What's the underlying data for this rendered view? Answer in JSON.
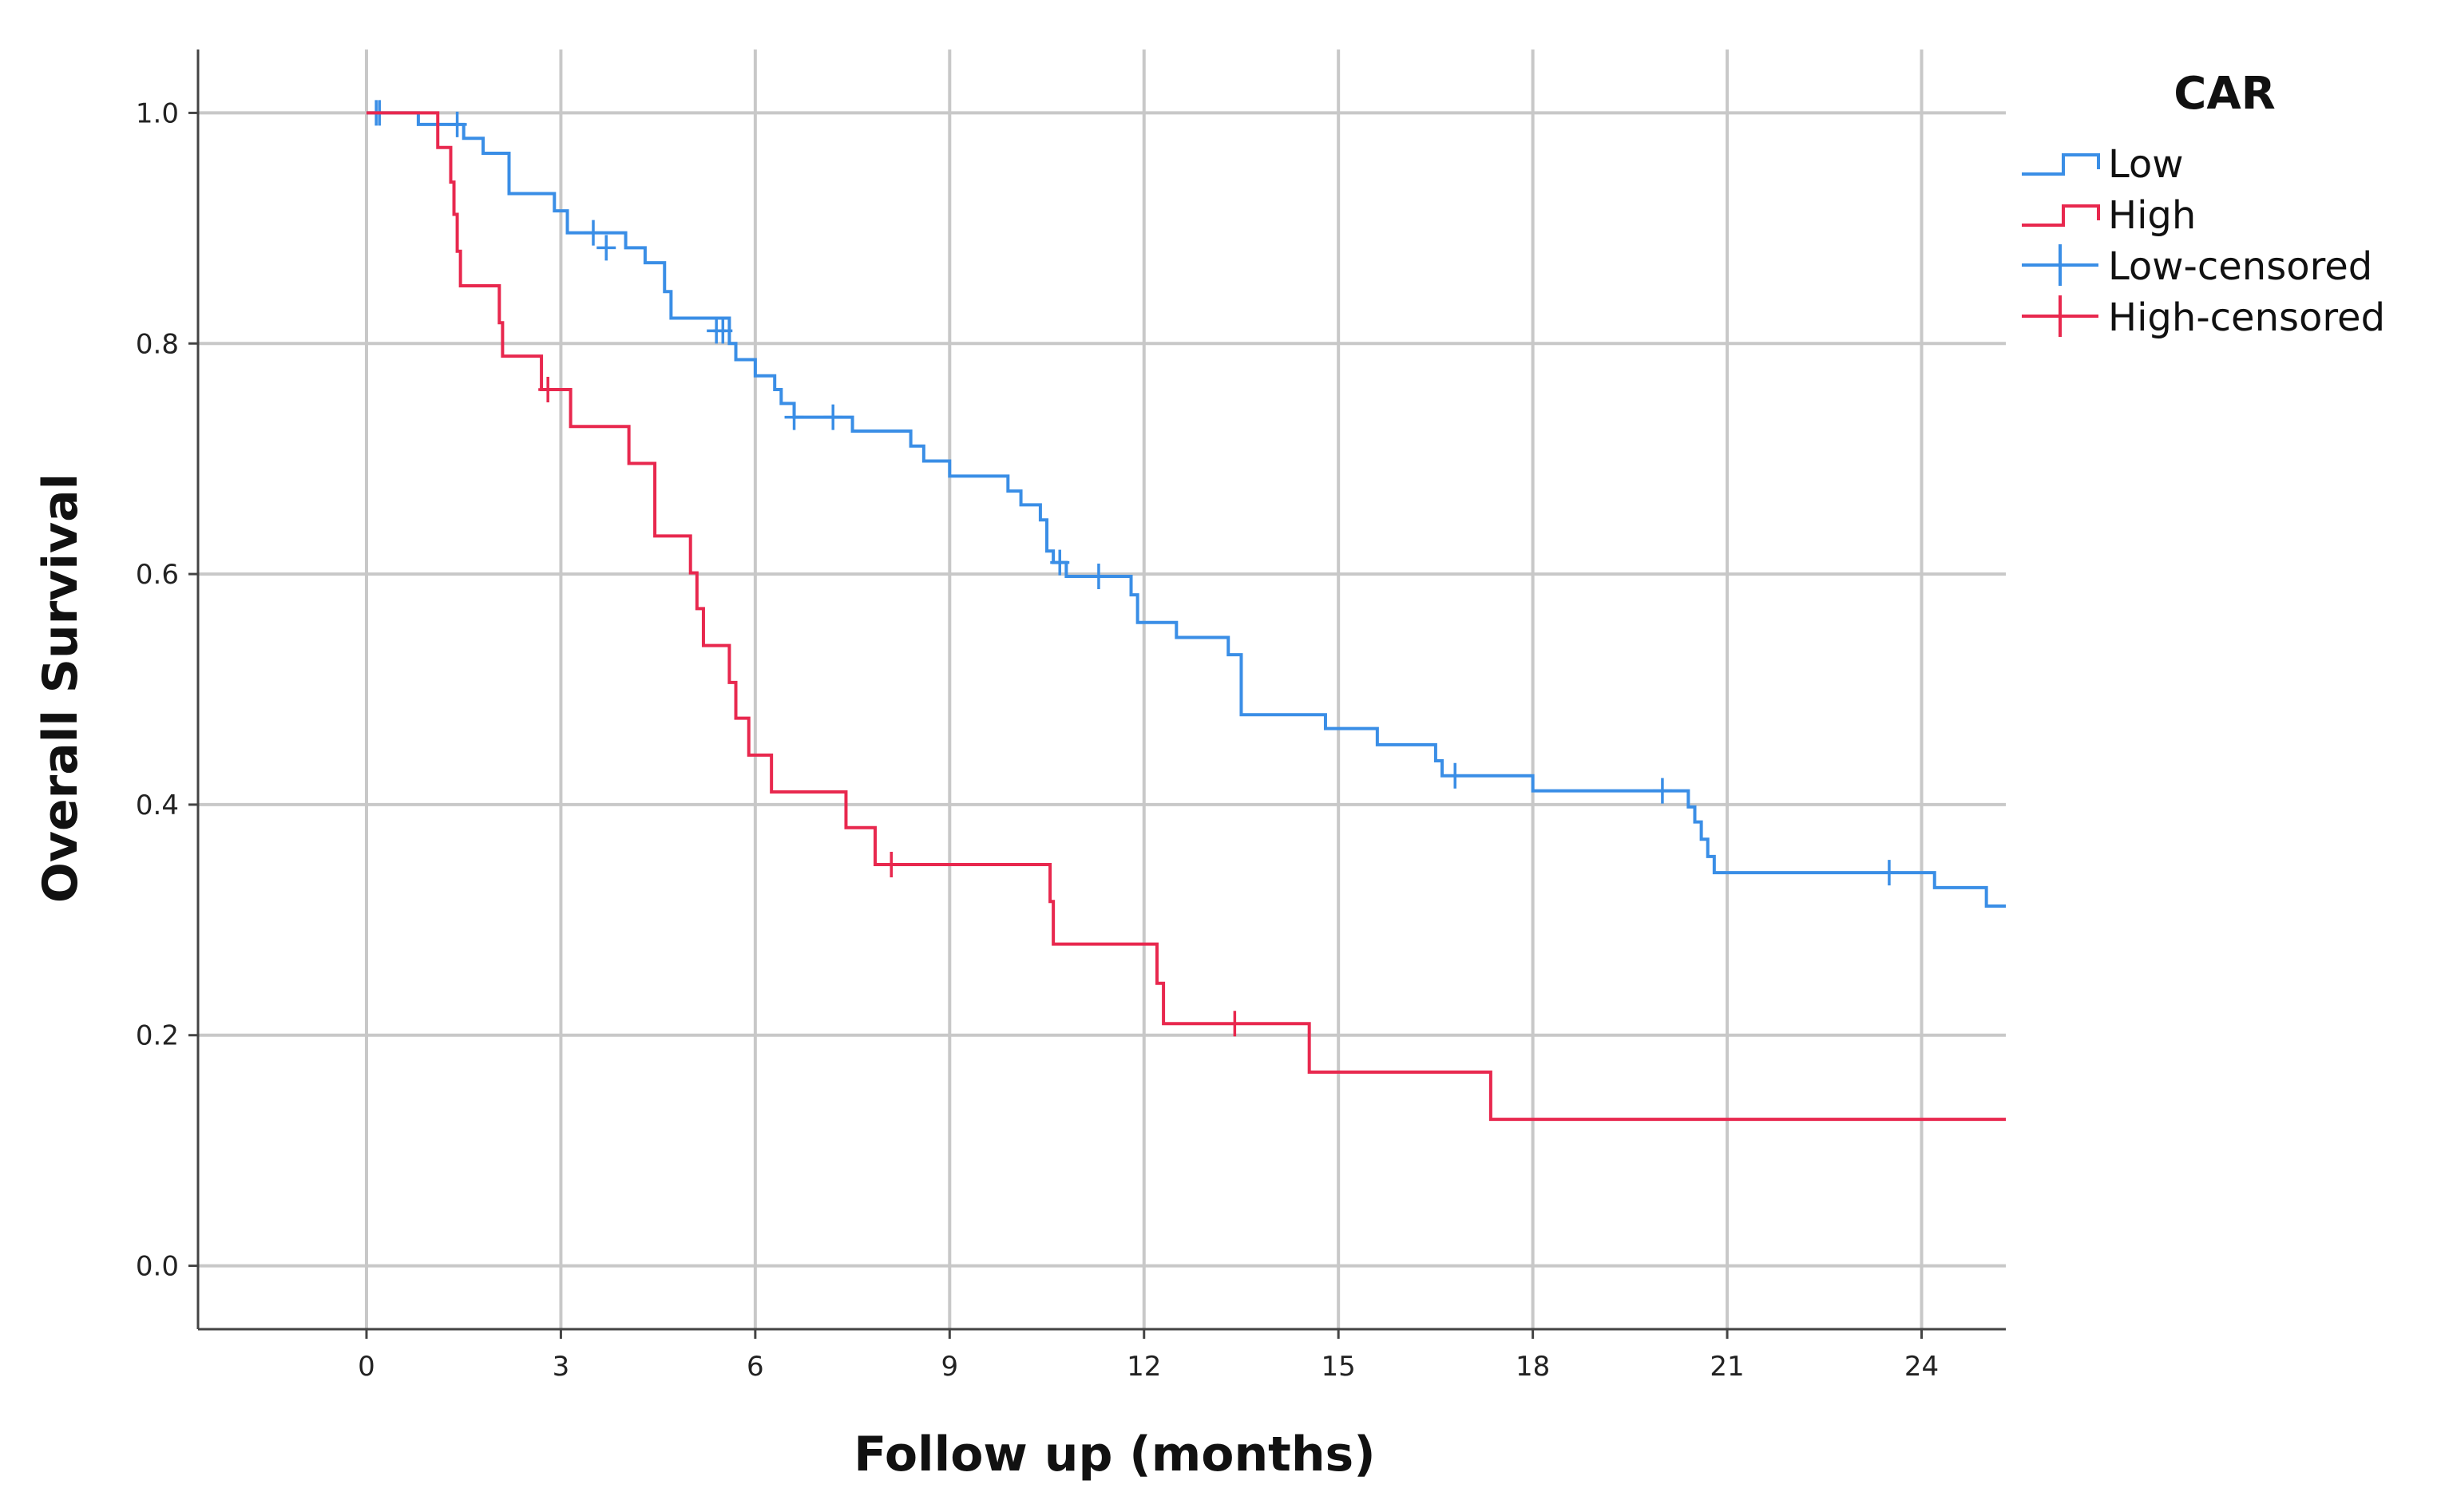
{
  "chart_data": {
    "type": "line",
    "xlabel": "Follow up (months)",
    "ylabel": "Overall Survival",
    "xlim": [
      -2.6,
      25.3
    ],
    "ylim": [
      -0.055,
      1.055
    ],
    "xticks": [
      "0",
      "3",
      "6",
      "9",
      "12",
      "15",
      "18",
      "21",
      "24"
    ],
    "yticks": [
      "0.0",
      "0.2",
      "0.4",
      "0.6",
      "0.8",
      "1.0"
    ],
    "grid": true,
    "legend": {
      "title": "CAR",
      "placement": "right",
      "entries": [
        "Low",
        "High",
        "Low-censored",
        "High-censored"
      ]
    },
    "colors": {
      "Low": "#3a8ee6",
      "High": "#e8284e",
      "grid": "#c8c8c8",
      "axis": "#444444"
    },
    "series": [
      {
        "name": "Low",
        "type": "step",
        "points": [
          [
            0,
            1.0
          ],
          [
            0.3,
            1.0
          ],
          [
            0.8,
            0.99
          ],
          [
            1.5,
            0.978
          ],
          [
            1.8,
            0.965
          ],
          [
            2.2,
            0.945
          ],
          [
            2.2,
            0.93
          ],
          [
            2.7,
            0.93
          ],
          [
            2.9,
            0.915
          ],
          [
            3.1,
            0.896
          ],
          [
            3.6,
            0.896
          ],
          [
            4.0,
            0.883
          ],
          [
            4.3,
            0.87
          ],
          [
            4.6,
            0.845
          ],
          [
            4.7,
            0.822
          ],
          [
            5.4,
            0.822
          ],
          [
            5.6,
            0.8
          ],
          [
            5.7,
            0.786
          ],
          [
            6.0,
            0.772
          ],
          [
            6.3,
            0.76
          ],
          [
            6.4,
            0.748
          ],
          [
            6.6,
            0.736
          ],
          [
            7.4,
            0.736
          ],
          [
            7.5,
            0.724
          ],
          [
            8.3,
            0.724
          ],
          [
            8.4,
            0.711
          ],
          [
            8.6,
            0.698
          ],
          [
            9.0,
            0.685
          ],
          [
            9.6,
            0.685
          ],
          [
            9.9,
            0.672
          ],
          [
            10.1,
            0.66
          ],
          [
            10.4,
            0.647
          ],
          [
            10.5,
            0.62
          ],
          [
            10.6,
            0.61
          ],
          [
            10.8,
            0.598
          ],
          [
            11.7,
            0.598
          ],
          [
            11.8,
            0.582
          ],
          [
            11.9,
            0.558
          ],
          [
            12.4,
            0.558
          ],
          [
            12.5,
            0.545
          ],
          [
            13.0,
            0.545
          ],
          [
            13.3,
            0.53
          ],
          [
            13.5,
            0.478
          ],
          [
            14.7,
            0.478
          ],
          [
            14.8,
            0.466
          ],
          [
            15.5,
            0.466
          ],
          [
            15.6,
            0.452
          ],
          [
            16.4,
            0.452
          ],
          [
            16.5,
            0.438
          ],
          [
            16.6,
            0.425
          ],
          [
            17.9,
            0.425
          ],
          [
            18.0,
            0.412
          ],
          [
            20.3,
            0.412
          ],
          [
            20.4,
            0.398
          ],
          [
            20.5,
            0.385
          ],
          [
            20.6,
            0.37
          ],
          [
            20.7,
            0.355
          ],
          [
            20.8,
            0.341
          ],
          [
            24.1,
            0.341
          ],
          [
            24.2,
            0.328
          ],
          [
            24.9,
            0.328
          ],
          [
            25.0,
            0.312
          ],
          [
            25.3,
            0.312
          ]
        ],
        "censored": [
          [
            0.15,
            1.0
          ],
          [
            0.2,
            1.0
          ],
          [
            1.4,
            0.99
          ],
          [
            3.5,
            0.896
          ],
          [
            3.7,
            0.883
          ],
          [
            5.4,
            0.811
          ],
          [
            5.5,
            0.811
          ],
          [
            6.6,
            0.736
          ],
          [
            7.2,
            0.736
          ],
          [
            10.7,
            0.61
          ],
          [
            11.3,
            0.598
          ],
          [
            16.8,
            0.425
          ],
          [
            20.0,
            0.412
          ],
          [
            23.5,
            0.341
          ]
        ]
      },
      {
        "name": "High",
        "type": "step",
        "points": [
          [
            0,
            1.0
          ],
          [
            1.0,
            1.0
          ],
          [
            1.1,
            0.97
          ],
          [
            1.3,
            0.94
          ],
          [
            1.35,
            0.912
          ],
          [
            1.4,
            0.88
          ],
          [
            1.45,
            0.85
          ],
          [
            1.95,
            0.85
          ],
          [
            2.05,
            0.818
          ],
          [
            2.1,
            0.789
          ],
          [
            2.6,
            0.789
          ],
          [
            2.7,
            0.76
          ],
          [
            3.1,
            0.76
          ],
          [
            3.15,
            0.728
          ],
          [
            4.0,
            0.728
          ],
          [
            4.05,
            0.696
          ],
          [
            4.4,
            0.696
          ],
          [
            4.45,
            0.633
          ],
          [
            4.95,
            0.633
          ],
          [
            5.0,
            0.601
          ],
          [
            5.1,
            0.57
          ],
          [
            5.2,
            0.538
          ],
          [
            5.55,
            0.538
          ],
          [
            5.6,
            0.506
          ],
          [
            5.7,
            0.475
          ],
          [
            5.85,
            0.475
          ],
          [
            5.9,
            0.443
          ],
          [
            6.2,
            0.443
          ],
          [
            6.25,
            0.411
          ],
          [
            7.35,
            0.411
          ],
          [
            7.4,
            0.38
          ],
          [
            7.8,
            0.38
          ],
          [
            7.85,
            0.348
          ],
          [
            10.5,
            0.348
          ],
          [
            10.55,
            0.316
          ],
          [
            10.6,
            0.279
          ],
          [
            12.1,
            0.279
          ],
          [
            12.2,
            0.245
          ],
          [
            12.3,
            0.21
          ],
          [
            14.5,
            0.21
          ],
          [
            14.55,
            0.168
          ],
          [
            17.3,
            0.168
          ],
          [
            17.35,
            0.127
          ],
          [
            25.3,
            0.127
          ]
        ],
        "censored": [
          [
            2.8,
            0.76
          ],
          [
            8.1,
            0.348
          ],
          [
            13.4,
            0.21
          ]
        ]
      }
    ]
  }
}
